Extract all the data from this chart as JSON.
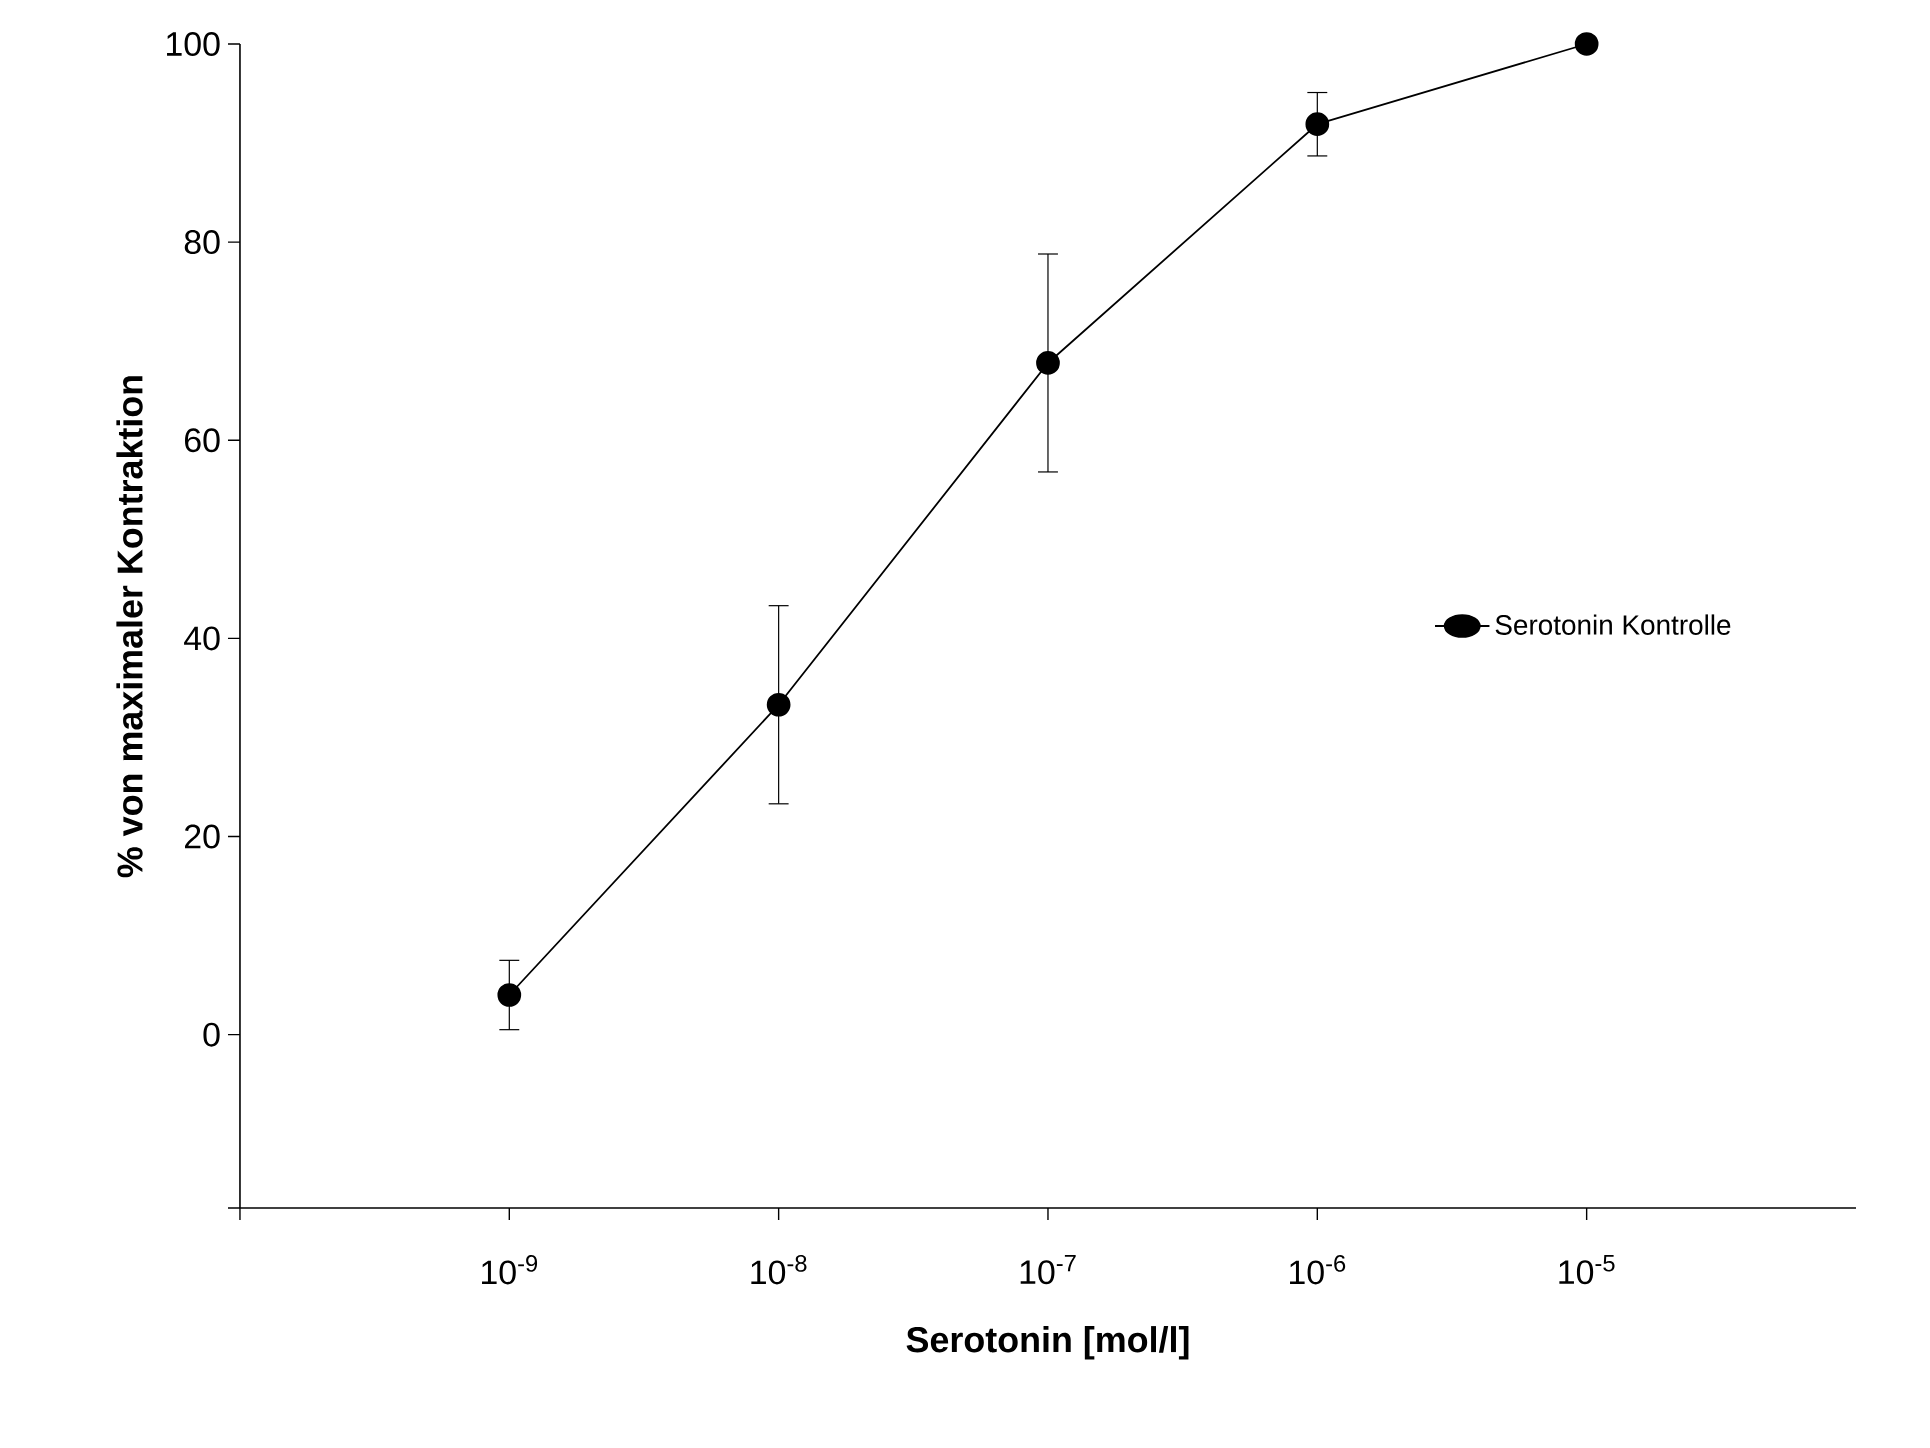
{
  "chart_data": {
    "type": "line",
    "xlabel": "Serotonin [mol/l]",
    "ylabel": "% von maximaler Kontraktion",
    "log": "x",
    "xlim": [
      1e-10,
      0.0001
    ],
    "xticks": [
      {
        "value": 1e-10,
        "label": null
      },
      {
        "value": 1e-09,
        "label": "10$^{-9}$"
      },
      {
        "value": 1e-08,
        "label": "10$^{-8}$"
      },
      {
        "value": 1e-07,
        "label": "10$^{-7}$"
      },
      {
        "value": 1e-06,
        "label": "10$^{-6}$"
      },
      {
        "value": 1e-05,
        "label": "10$^{-5}$"
      }
    ],
    "ylim": [
      -17.5,
      100
    ],
    "yticks": [
      {
        "value": -17.5,
        "label": null
      },
      0,
      20,
      40,
      60,
      80,
      100
    ],
    "grid": false,
    "legend": "right",
    "marker": "circle",
    "line_style": "solid",
    "series": [
      {
        "name": "Serotonin Kontrolle",
        "color": "#000000",
        "x": [
          1e-09,
          1e-08,
          1e-07,
          1e-06,
          1e-05
        ],
        "values": [
          4,
          33.3,
          67.8,
          91.9,
          100
        ],
        "errors": [
          3.5,
          10,
          11,
          3.2,
          null
        ]
      }
    ]
  }
}
